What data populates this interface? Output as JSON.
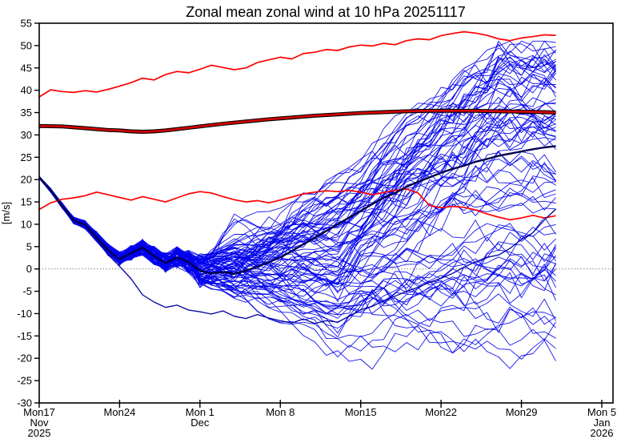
{
  "window": {
    "title": "Zonal mean zonal wind at 10 hPa 20251117"
  },
  "chart_data": {
    "type": "line",
    "title": "Zonal mean zonal wind at 10 hPa 20251117",
    "ylabel": "[m/s]",
    "ylim": [
      -30,
      55
    ],
    "y_tick_step": 5,
    "y_tick_labels": [
      "55",
      "50",
      "45",
      "40",
      "35",
      "30",
      "25",
      "20",
      "15",
      "10",
      "5",
      "0",
      "-5",
      "-10",
      "-15",
      "-20",
      "-25",
      "-30"
    ],
    "x_axis_span_days": 50,
    "forecast_length_days": 45,
    "x_ticks": [
      {
        "day": 0,
        "label": "Mon17",
        "sub": [
          "Nov",
          "2025"
        ]
      },
      {
        "day": 7,
        "label": "Mon24",
        "sub": []
      },
      {
        "day": 14,
        "label": "Mon 1",
        "sub": [
          "Dec"
        ]
      },
      {
        "day": 21,
        "label": "Mon 8",
        "sub": []
      },
      {
        "day": 28,
        "label": "Mon15",
        "sub": []
      },
      {
        "day": 35,
        "label": "Mon22",
        "sub": []
      },
      {
        "day": 42,
        "label": "Mon29",
        "sub": []
      },
      {
        "day": 49,
        "label": "Mon 5",
        "sub": [
          "Jan",
          "2026"
        ]
      }
    ],
    "grid": false,
    "legend_position": "none",
    "zero_line": {
      "value": 0,
      "style": "dotted",
      "color": "#777777"
    },
    "axis_color": "#000000",
    "series": [
      {
        "name": "climatology plus sigma",
        "color": "#FF0000",
        "width": 1.7,
        "edge": null,
        "points": [
          [
            0,
            38.5
          ],
          [
            1,
            40.1
          ],
          [
            2,
            39.7
          ],
          [
            3,
            39.5
          ],
          [
            4,
            39.9
          ],
          [
            5,
            39.6
          ],
          [
            6,
            40.2
          ],
          [
            7,
            40.9
          ],
          [
            8,
            41.7
          ],
          [
            9,
            42.7
          ],
          [
            10,
            42.3
          ],
          [
            11,
            43.5
          ],
          [
            12,
            44.2
          ],
          [
            13,
            43.9
          ],
          [
            14,
            44.7
          ],
          [
            15,
            45.6
          ],
          [
            16,
            45.1
          ],
          [
            17,
            44.6
          ],
          [
            18,
            45.0
          ],
          [
            19,
            46.2
          ],
          [
            20,
            46.8
          ],
          [
            21,
            47.4
          ],
          [
            22,
            47.0
          ],
          [
            23,
            48.2
          ],
          [
            24,
            48.5
          ],
          [
            25,
            49.1
          ],
          [
            26,
            48.9
          ],
          [
            27,
            49.7
          ],
          [
            28,
            50.1
          ],
          [
            29,
            49.9
          ],
          [
            30,
            50.5
          ],
          [
            31,
            50.2
          ],
          [
            32,
            51.1
          ],
          [
            33,
            51.5
          ],
          [
            34,
            51.3
          ],
          [
            35,
            52.2
          ],
          [
            36,
            52.7
          ],
          [
            37,
            53.1
          ],
          [
            38,
            52.8
          ],
          [
            39,
            52.3
          ],
          [
            40,
            51.5
          ],
          [
            41,
            51.1
          ],
          [
            42,
            51.7
          ],
          [
            43,
            52.0
          ],
          [
            44,
            52.4
          ],
          [
            45,
            52.3
          ]
        ]
      },
      {
        "name": "climatology minus sigma",
        "color": "#FF0000",
        "width": 1.7,
        "edge": null,
        "points": [
          [
            0,
            13.3
          ],
          [
            1,
            14.8
          ],
          [
            2,
            15.6
          ],
          [
            3,
            15.9
          ],
          [
            4,
            16.4
          ],
          [
            5,
            17.2
          ],
          [
            6,
            16.6
          ],
          [
            7,
            16.0
          ],
          [
            8,
            15.4
          ],
          [
            9,
            16.2
          ],
          [
            10,
            15.6
          ],
          [
            11,
            15.0
          ],
          [
            12,
            15.9
          ],
          [
            13,
            16.8
          ],
          [
            14,
            17.3
          ],
          [
            15,
            17.0
          ],
          [
            16,
            16.2
          ],
          [
            17,
            15.5
          ],
          [
            18,
            15.0
          ],
          [
            19,
            15.3
          ],
          [
            20,
            14.8
          ],
          [
            21,
            15.4
          ],
          [
            22,
            16.1
          ],
          [
            23,
            16.8
          ],
          [
            24,
            17.2
          ],
          [
            25,
            17.5
          ],
          [
            26,
            17.3
          ],
          [
            27,
            17.6
          ],
          [
            28,
            17.2
          ],
          [
            29,
            16.6
          ],
          [
            30,
            17.1
          ],
          [
            31,
            17.6
          ],
          [
            32,
            17.9
          ],
          [
            33,
            17.0
          ],
          [
            34,
            14.2
          ],
          [
            35,
            13.7
          ],
          [
            36,
            14.0
          ],
          [
            37,
            13.8
          ],
          [
            38,
            13.2
          ],
          [
            39,
            12.3
          ],
          [
            40,
            11.6
          ],
          [
            41,
            11.0
          ],
          [
            42,
            11.4
          ],
          [
            43,
            12.0
          ],
          [
            44,
            11.4
          ],
          [
            45,
            11.9
          ]
        ]
      },
      {
        "name": "climatology mean",
        "color": "#D40000",
        "width": 2.7,
        "edge": "#000000",
        "points": [
          [
            0,
            32.0
          ],
          [
            2,
            31.9
          ],
          [
            4,
            31.5
          ],
          [
            6,
            31.1
          ],
          [
            7,
            31.0
          ],
          [
            8,
            30.8
          ],
          [
            9,
            30.7
          ],
          [
            10,
            30.8
          ],
          [
            11,
            31.0
          ],
          [
            12,
            31.3
          ],
          [
            13,
            31.6
          ],
          [
            14,
            31.9
          ],
          [
            16,
            32.5
          ],
          [
            18,
            33.0
          ],
          [
            20,
            33.5
          ],
          [
            22,
            33.9
          ],
          [
            24,
            34.3
          ],
          [
            26,
            34.6
          ],
          [
            28,
            34.9
          ],
          [
            30,
            35.1
          ],
          [
            32,
            35.3
          ],
          [
            34,
            35.4
          ],
          [
            36,
            35.4
          ],
          [
            38,
            35.4
          ],
          [
            40,
            35.3
          ],
          [
            42,
            35.2
          ],
          [
            44,
            35.1
          ],
          [
            45,
            35.0
          ]
        ]
      },
      {
        "name": "control forecast",
        "color": "#0000A0",
        "width": 1.3,
        "edge": null,
        "points": [
          [
            0,
            20.5
          ],
          [
            1,
            17.5
          ],
          [
            2,
            14.0
          ],
          [
            3,
            10.6
          ],
          [
            4,
            9.6
          ],
          [
            5,
            6.6
          ],
          [
            6,
            3.2
          ],
          [
            7,
            0.6
          ],
          [
            8,
            -2.2
          ],
          [
            9,
            -5.8
          ],
          [
            10,
            -7.4
          ],
          [
            11,
            -8.6
          ],
          [
            12,
            -8.1
          ],
          [
            13,
            -9.2
          ],
          [
            14,
            -9.6
          ],
          [
            15,
            -10.1
          ],
          [
            16,
            -9.4
          ],
          [
            17,
            -10.6
          ],
          [
            18,
            -11.1
          ],
          [
            19,
            -10.2
          ],
          [
            20,
            -11.0
          ],
          [
            21,
            -11.6
          ],
          [
            22,
            -12.1
          ],
          [
            23,
            -11.2
          ],
          [
            24,
            -12.2
          ],
          [
            25,
            -11.6
          ],
          [
            26,
            -11.9
          ],
          [
            27,
            -10.6
          ],
          [
            28,
            -9.1
          ],
          [
            29,
            -8.4
          ],
          [
            30,
            -7.1
          ],
          [
            31,
            -6.1
          ],
          [
            32,
            -5.0
          ],
          [
            33,
            -4.1
          ],
          [
            34,
            -3.0
          ],
          [
            35,
            -2.1
          ],
          [
            36,
            -1.0
          ],
          [
            37,
            0.4
          ],
          [
            38,
            1.6
          ],
          [
            39,
            2.6
          ],
          [
            40,
            3.1
          ],
          [
            41,
            4.6
          ],
          [
            42,
            6.6
          ],
          [
            43,
            8.1
          ],
          [
            44,
            11.0
          ],
          [
            45,
            13.4
          ]
        ]
      },
      {
        "name": "ensemble mean",
        "color": "#000050",
        "width": 2.4,
        "edge": null,
        "points": [
          [
            0,
            20.5
          ],
          [
            1,
            17.6
          ],
          [
            2,
            14.1
          ],
          [
            3,
            10.9
          ],
          [
            4,
            9.9
          ],
          [
            5,
            7.1
          ],
          [
            6,
            4.2
          ],
          [
            7,
            2.2
          ],
          [
            8,
            3.5
          ],
          [
            9,
            4.8
          ],
          [
            10,
            2.9
          ],
          [
            11,
            1.3
          ],
          [
            12,
            2.6
          ],
          [
            13,
            1.5
          ],
          [
            14,
            -0.4
          ],
          [
            15,
            -1.0
          ],
          [
            16,
            -0.7
          ],
          [
            17,
            -1.1
          ],
          [
            18,
            -0.4
          ],
          [
            19,
            0.5
          ],
          [
            20,
            1.5
          ],
          [
            21,
            2.6
          ],
          [
            22,
            4.0
          ],
          [
            23,
            5.5
          ],
          [
            24,
            7.0
          ],
          [
            25,
            8.5
          ],
          [
            26,
            10.0
          ],
          [
            27,
            11.5
          ],
          [
            28,
            13.0
          ],
          [
            29,
            14.5
          ],
          [
            30,
            15.9
          ],
          [
            31,
            17.0
          ],
          [
            32,
            18.4
          ],
          [
            33,
            19.5
          ],
          [
            34,
            20.5
          ],
          [
            35,
            21.5
          ],
          [
            36,
            22.4
          ],
          [
            37,
            23.1
          ],
          [
            38,
            24.0
          ],
          [
            39,
            24.6
          ],
          [
            40,
            25.3
          ],
          [
            41,
            25.8
          ],
          [
            42,
            26.3
          ],
          [
            43,
            26.8
          ],
          [
            44,
            27.2
          ],
          [
            45,
            27.5
          ]
        ]
      }
    ],
    "ensemble_members": {
      "count": 85,
      "color": "#0000EE",
      "width": 0.9,
      "start_value": 20.5,
      "common_path_days_0_to_13": [
        20.5,
        17.6,
        14.2,
        10.9,
        9.9,
        7.2,
        4.3,
        2.3,
        3.6,
        4.9,
        3.0,
        1.4,
        2.6,
        1.6
      ],
      "envelope_min_by_day": {
        "10": -5,
        "14": -11,
        "17": -19,
        "21": -21,
        "26": -28,
        "31": -24,
        "37": -27,
        "45": -19
      },
      "envelope_max_by_day": {
        "10": 10,
        "14": 20,
        "17": 26,
        "21": 33,
        "26": 38,
        "31": 43,
        "37": 48,
        "45": 50
      },
      "seed": 20251117
    }
  }
}
